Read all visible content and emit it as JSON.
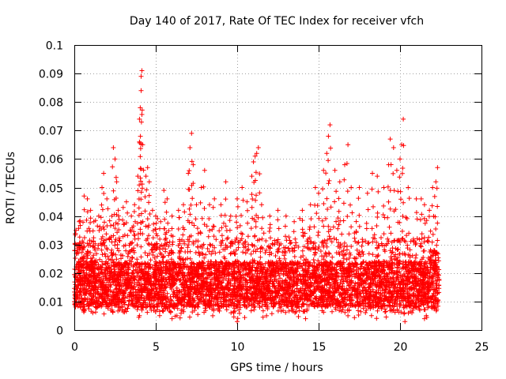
{
  "chart_data": {
    "type": "scatter",
    "title": "Day 140 of 2017, Rate Of TEC Index for receiver vfch",
    "xlabel": "GPS time / hours",
    "ylabel": "ROTI / TECUs",
    "xlim": [
      0,
      25
    ],
    "ylim": [
      0,
      0.1
    ],
    "x_ticks": [
      0,
      5,
      10,
      15,
      20,
      25
    ],
    "x_tick_labels": [
      "0",
      "5",
      "10",
      "15",
      "20",
      "25"
    ],
    "y_ticks": [
      0,
      0.01,
      0.02,
      0.03,
      0.04,
      0.05,
      0.06,
      0.07,
      0.08,
      0.09,
      0.1
    ],
    "y_tick_labels": [
      "0",
      "0.01",
      "0.02",
      "0.03",
      "0.04",
      "0.05",
      "0.06",
      "0.07",
      "0.08",
      "0.09",
      "0.1"
    ],
    "grid": true,
    "marker": "+",
    "color": "#ff0000",
    "data_range": {
      "x_min": 0.0,
      "x_max": 22.4,
      "y_min": 0.003,
      "y_max": 0.091
    },
    "series": [
      {
        "name": "ROTI",
        "description": "Dense cloud of ROTI samples; bulk between 0.008 and 0.03 TECU/s",
        "points": [
          [
            0.1,
            0.035
          ],
          [
            0.2,
            0.03
          ],
          [
            0.3,
            0.038
          ],
          [
            0.5,
            0.025
          ],
          [
            0.6,
            0.047
          ],
          [
            0.8,
            0.046
          ],
          [
            1.0,
            0.042
          ],
          [
            1.2,
            0.038
          ],
          [
            1.5,
            0.04
          ],
          [
            1.7,
            0.05
          ],
          [
            1.8,
            0.055
          ],
          [
            2.0,
            0.046
          ],
          [
            2.3,
            0.04
          ],
          [
            2.4,
            0.064
          ],
          [
            2.5,
            0.06
          ],
          [
            2.6,
            0.052
          ],
          [
            2.7,
            0.042
          ],
          [
            3.0,
            0.043
          ],
          [
            3.2,
            0.045
          ],
          [
            3.5,
            0.04
          ],
          [
            3.7,
            0.044
          ],
          [
            3.9,
            0.054
          ],
          [
            4.0,
            0.066
          ],
          [
            4.0,
            0.074
          ],
          [
            4.05,
            0.078
          ],
          [
            4.1,
            0.084
          ],
          [
            4.1,
            0.089
          ],
          [
            4.15,
            0.091
          ],
          [
            4.2,
            0.065
          ],
          [
            4.4,
            0.054
          ],
          [
            4.5,
            0.057
          ],
          [
            4.6,
            0.052
          ],
          [
            4.8,
            0.042
          ],
          [
            5.0,
            0.04
          ],
          [
            5.3,
            0.038
          ],
          [
            5.5,
            0.049
          ],
          [
            5.7,
            0.046
          ],
          [
            6.0,
            0.04
          ],
          [
            6.4,
            0.042
          ],
          [
            6.7,
            0.044
          ],
          [
            7.0,
            0.055
          ],
          [
            7.1,
            0.064
          ],
          [
            7.2,
            0.069
          ],
          [
            7.3,
            0.058
          ],
          [
            7.5,
            0.044
          ],
          [
            7.8,
            0.05
          ],
          [
            8.0,
            0.056
          ],
          [
            8.3,
            0.044
          ],
          [
            8.6,
            0.046
          ],
          [
            9.0,
            0.044
          ],
          [
            9.3,
            0.052
          ],
          [
            9.6,
            0.04
          ],
          [
            10.0,
            0.046
          ],
          [
            10.3,
            0.05
          ],
          [
            10.6,
            0.045
          ],
          [
            10.9,
            0.054
          ],
          [
            11.0,
            0.059
          ],
          [
            11.1,
            0.061
          ],
          [
            11.2,
            0.062
          ],
          [
            11.3,
            0.064
          ],
          [
            11.5,
            0.044
          ],
          [
            12.0,
            0.04
          ],
          [
            12.5,
            0.042
          ],
          [
            13.0,
            0.04
          ],
          [
            13.5,
            0.038
          ],
          [
            14.0,
            0.042
          ],
          [
            14.5,
            0.044
          ],
          [
            14.8,
            0.05
          ],
          [
            15.0,
            0.048
          ],
          [
            15.3,
            0.056
          ],
          [
            15.5,
            0.062
          ],
          [
            15.6,
            0.068
          ],
          [
            15.7,
            0.072
          ],
          [
            16.0,
            0.056
          ],
          [
            16.3,
            0.052
          ],
          [
            16.6,
            0.058
          ],
          [
            16.8,
            0.065
          ],
          [
            17.0,
            0.05
          ],
          [
            17.5,
            0.05
          ],
          [
            18.0,
            0.048
          ],
          [
            18.3,
            0.055
          ],
          [
            18.6,
            0.054
          ],
          [
            19.0,
            0.05
          ],
          [
            19.3,
            0.058
          ],
          [
            19.4,
            0.067
          ],
          [
            19.6,
            0.064
          ],
          [
            19.8,
            0.056
          ],
          [
            20.0,
            0.06
          ],
          [
            20.1,
            0.065
          ],
          [
            20.2,
            0.074
          ],
          [
            20.5,
            0.05
          ],
          [
            21.0,
            0.046
          ],
          [
            21.3,
            0.046
          ],
          [
            21.5,
            0.044
          ],
          [
            21.8,
            0.042
          ],
          [
            22.0,
            0.05
          ],
          [
            22.2,
            0.052
          ],
          [
            22.3,
            0.057
          ]
        ]
      }
    ]
  }
}
